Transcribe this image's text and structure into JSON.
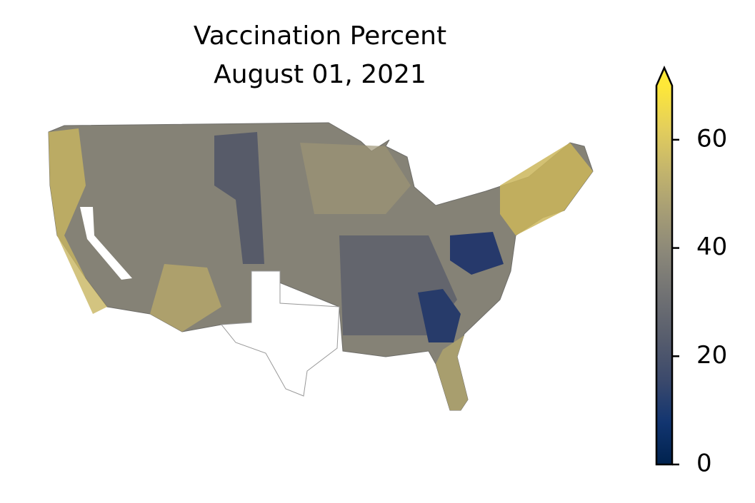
{
  "chart_data": {
    "type": "choropleth",
    "title": "Vaccination Percent",
    "subtitle": "August 01, 2021",
    "colorbar": {
      "colormap": "cividis",
      "lim": [
        0,
        70
      ],
      "ticks": [
        0,
        20,
        40,
        60
      ],
      "extend": "max"
    }
  }
}
